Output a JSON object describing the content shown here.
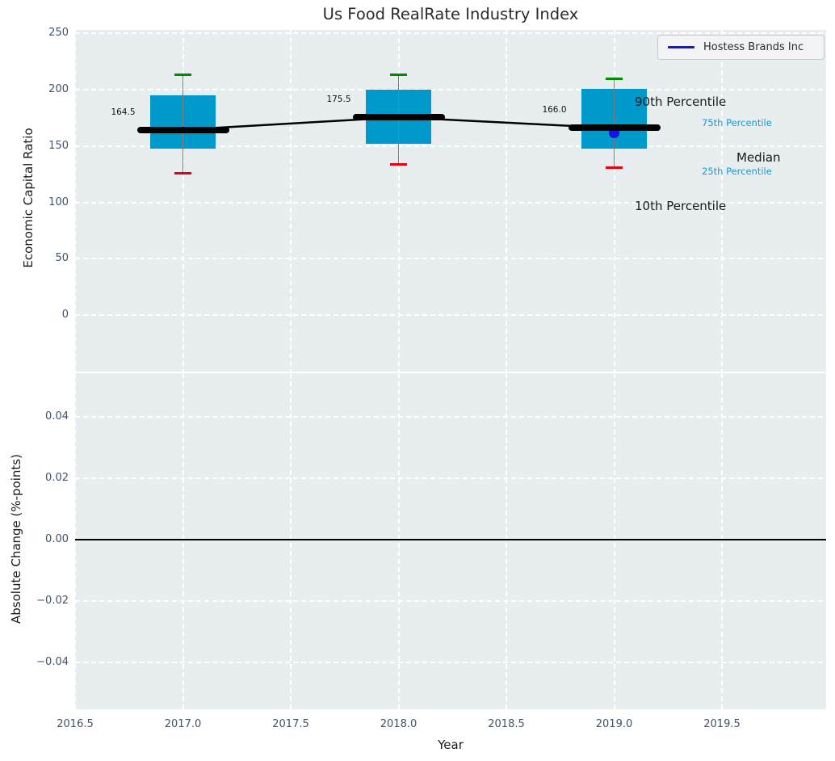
{
  "title": "Us Food RealRate Industry Index",
  "chart_data": {
    "type": "boxplot",
    "title": "Us Food RealRate Industry Index",
    "xlabel": "Year",
    "xlim": [
      2016.5,
      2019.98
    ],
    "xticks": [
      2016.5,
      2017.0,
      2017.5,
      2018.0,
      2018.5,
      2019.0,
      2019.5
    ],
    "grid": "white-dashed",
    "subplot_top": {
      "ylabel": "Economic Capital Ratio",
      "ylim": [
        -50,
        253
      ],
      "yticks": [
        250,
        200,
        150,
        100,
        50,
        0
      ],
      "boxes": [
        {
          "year": 2017,
          "median": 164.5,
          "median_label": "164.5",
          "q1": 148,
          "q3": 195,
          "whisker_low": 126,
          "whisker_high": 213
        },
        {
          "year": 2018,
          "median": 175.5,
          "median_label": "175.5",
          "q1": 152,
          "q3": 200,
          "whisker_low": 134,
          "whisker_high": 213
        },
        {
          "year": 2019,
          "median": 166.0,
          "median_label": "166.0",
          "q1": 148,
          "q3": 201,
          "whisker_low": 131,
          "whisker_high": 210
        }
      ],
      "median_trend": [
        {
          "year": 2017,
          "value": 164.5
        },
        {
          "year": 2018,
          "value": 175.5
        },
        {
          "year": 2019,
          "value": 166.0
        }
      ],
      "company_series": {
        "name": "Hostess Brands Inc",
        "points": [
          {
            "year": 2019,
            "value": 162
          }
        ]
      },
      "percentile_labels": [
        {
          "text": "90th Percentile",
          "size": "large"
        },
        {
          "text": "75th Percentile",
          "size": "small"
        },
        {
          "text": "Median",
          "size": "large"
        },
        {
          "text": "25th Percentile",
          "size": "small"
        },
        {
          "text": "10th Percentile",
          "size": "large"
        }
      ]
    },
    "subplot_bottom": {
      "ylabel": "Absolute Change (%-points)",
      "ylim": [
        -0.0553,
        0.0542
      ],
      "yticks": [
        0.04,
        0.02,
        0.0,
        -0.02,
        -0.04
      ],
      "ytick_labels": [
        "0.04",
        "0.02",
        "0.00",
        "−0.02",
        "−0.04"
      ],
      "zero_line": 0.0
    },
    "legend": {
      "position": "upper right",
      "entries": [
        {
          "label": "Hostess Brands Inc",
          "color": "#1414e0"
        }
      ]
    }
  },
  "colors": {
    "plot_bg": "#e8edef",
    "grid": "#ffffff",
    "box_fill": "#0099cc",
    "median_line": "#000000",
    "whisker_line": "#7d7d7d",
    "cap_high": "#008c00",
    "cap_low": "#e8000d",
    "company_marker": "#1414e0",
    "tick_label": "#42526b",
    "percentile_text_blue": "#189bd1",
    "text_dark": "#1a1a1a"
  }
}
